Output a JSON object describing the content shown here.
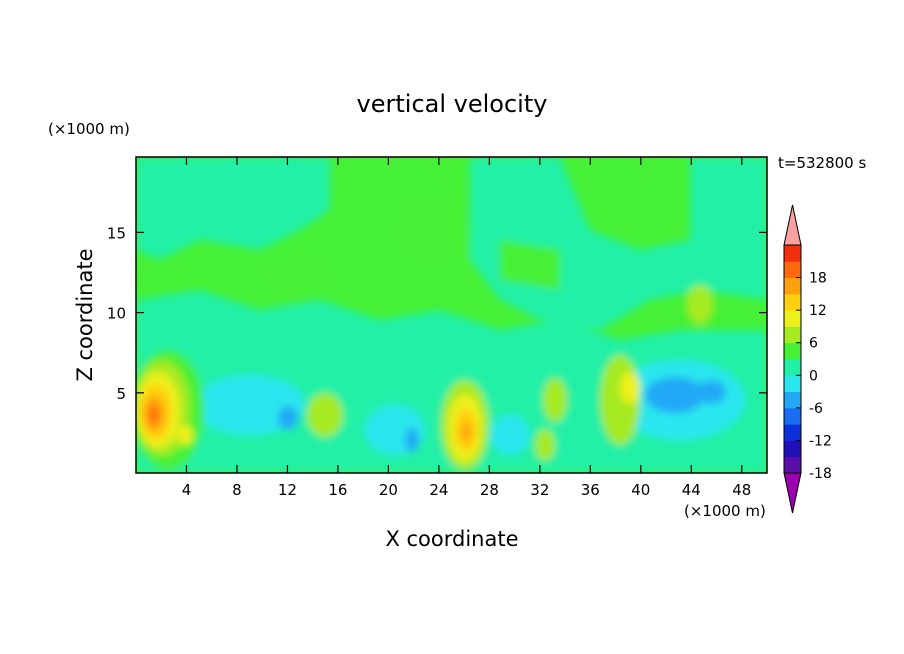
{
  "chart_data": {
    "type": "heatmap",
    "title": "vertical velocity",
    "xlabel": "X coordinate",
    "ylabel": "Z coordinate",
    "x_unit": "(×1000 m)",
    "y_unit": "(×1000 m)",
    "time_label": "t=532800 s",
    "xlim": [
      0,
      50
    ],
    "ylim": [
      0,
      19.7
    ],
    "x_ticks": [
      4,
      8,
      12,
      16,
      20,
      24,
      28,
      32,
      36,
      40,
      44,
      48
    ],
    "y_ticks": [
      5,
      10,
      15
    ],
    "colorbar": {
      "ticks": [
        18,
        12,
        6,
        0,
        -6,
        -12,
        -18
      ],
      "levels": [
        -21,
        -18,
        -15,
        -12,
        -9,
        -6,
        -3,
        0,
        3,
        6,
        9,
        12,
        15,
        18,
        21
      ],
      "colors": [
        "#9b00b0",
        "#5a10a8",
        "#1f10b8",
        "#0a32d8",
        "#1a6cf0",
        "#24a8f6",
        "#2ce6ee",
        "#20f0a6",
        "#46f036",
        "#a6ea24",
        "#eef01c",
        "#ffd010",
        "#ffa00e",
        "#ff6a0e",
        "#f2300e",
        "#f8a0a2"
      ]
    },
    "features": [
      {
        "kind": "updraft",
        "x": 1.5,
        "z": 4,
        "max": 16
      },
      {
        "kind": "updraft",
        "x": 26,
        "z": 2.5,
        "max": 11
      },
      {
        "kind": "updraft",
        "x": 38.5,
        "z": 5,
        "max": 6
      },
      {
        "kind": "updraft",
        "x": 14.5,
        "z": 3.5,
        "max": 6
      },
      {
        "kind": "downdraft",
        "x": 43,
        "z": 5,
        "min": -10
      },
      {
        "kind": "downdraft",
        "x": 12,
        "z": 3,
        "min": -7
      },
      {
        "kind": "downdraft",
        "x": 22,
        "z": 2,
        "min": -8
      }
    ]
  }
}
